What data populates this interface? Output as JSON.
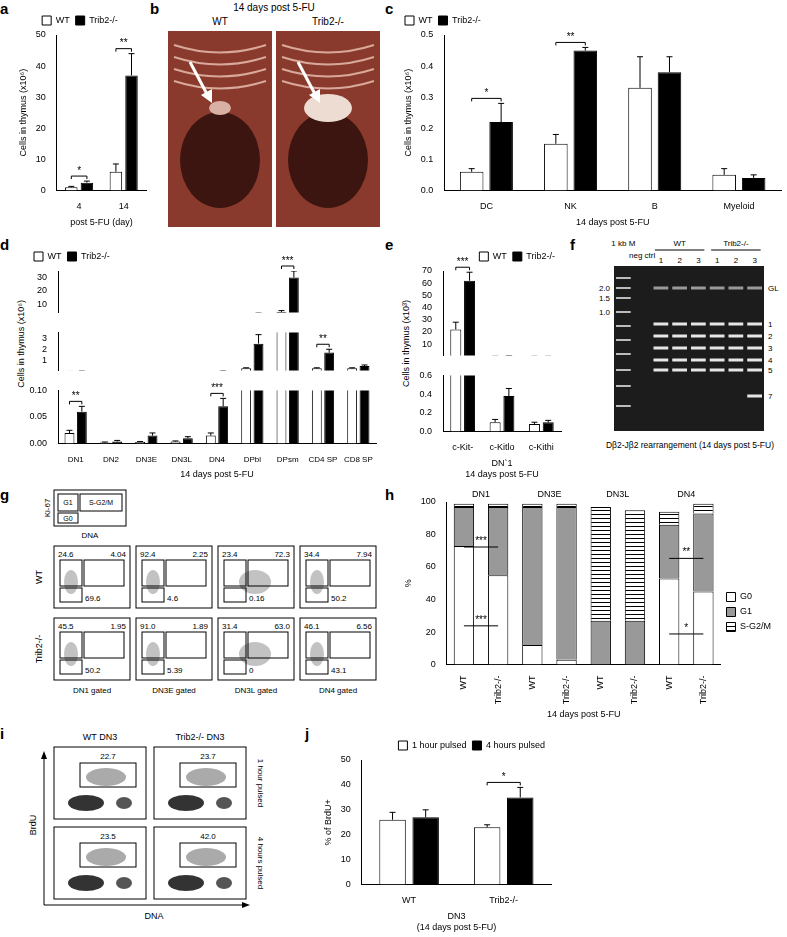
{
  "chart_data": [
    {
      "panel": "a",
      "type": "bar",
      "grid": false,
      "legend": "top",
      "categories": [
        "4",
        "14"
      ],
      "x_label": "post 5-FU (day)",
      "y_label": "Cells in thymus (x10⁶)",
      "ylim": [
        0,
        50
      ],
      "yticks": [
        0,
        10,
        20,
        30,
        40,
        50
      ],
      "series": [
        {
          "name": "WT",
          "color": "#ffffff",
          "values": [
            1.0,
            6.0
          ],
          "errors": [
            0.3,
            2.5
          ]
        },
        {
          "name": "Trib2-/-",
          "color": "#000000",
          "values": [
            2.5,
            37
          ],
          "errors": [
            0.5,
            7
          ]
        }
      ],
      "annotations": [
        {
          "category": "4",
          "text": "*"
        },
        {
          "category": "14",
          "text": "**"
        }
      ]
    },
    {
      "panel": "c",
      "type": "bar",
      "grid": false,
      "legend": "top-left",
      "categories": [
        "DC",
        "NK",
        "B",
        "Myeloid"
      ],
      "x_label": "14 days post 5-FU",
      "y_label": "Cells in thymus (x10⁶)",
      "ylim": [
        0,
        0.5
      ],
      "yticks": [
        {
          "value": 0,
          "label": "0.0"
        },
        0.1,
        0.2,
        0.3,
        0.4,
        0.5
      ],
      "series": [
        {
          "name": "WT",
          "color": "#ffffff",
          "values": [
            0.06,
            0.15,
            0.33,
            0.05
          ],
          "errors": [
            0.01,
            0.03,
            0.1,
            0.02
          ]
        },
        {
          "name": "Trib2-/-",
          "color": "#000000",
          "values": [
            0.22,
            0.45,
            0.38,
            0.04
          ],
          "errors": [
            0.06,
            0.01,
            0.05,
            0.01
          ]
        }
      ],
      "annotations": [
        {
          "category": "DC",
          "text": "*"
        },
        {
          "category": "NK",
          "text": "**"
        }
      ]
    },
    {
      "panel": "d",
      "type": "bar",
      "grid": false,
      "legend": "top-left",
      "categories": [
        "DN1",
        "DN2",
        "DN3E",
        "DN3L",
        "DN4",
        "DPbl",
        "DPsm",
        "CD4 SP",
        "CD8 SP"
      ],
      "x_label": "14 days post 5-FU",
      "y_label": "Cells in thymus (x10⁶)",
      "ylim": [
        [
          0,
          0.1
        ],
        [
          0.1,
          3.5
        ],
        [
          3.5,
          35
        ]
      ],
      "yticks": [
        [
          {
            "value": 0,
            "label": "0.00"
          },
          0.05,
          {
            "value": 0.1,
            "label": "0.10"
          }
        ],
        [
          1,
          2,
          3
        ],
        [
          10,
          20,
          30
        ]
      ],
      "series": [
        {
          "name": "WT",
          "color": "#ffffff",
          "values": [
            0.02,
            0.002,
            0.003,
            0.004,
            0.015,
            0.3,
            4,
            0.3,
            0.3
          ],
          "errors": [
            0.005,
            0.001,
            0.001,
            0.001,
            0.005,
            0.05,
            1,
            0.05,
            0.05
          ]
        },
        {
          "name": "Trib2-/-",
          "color": "#000000",
          "values": [
            0.06,
            0.004,
            0.015,
            0.01,
            0.07,
            2.5,
            30,
            1.7,
            0.5
          ],
          "errors": [
            0.01,
            0.002,
            0.005,
            0.003,
            0.015,
            0.8,
            5,
            0.3,
            0.1
          ]
        }
      ],
      "annotations": [
        {
          "category": "DN1",
          "text": "**"
        },
        {
          "category": "DN4",
          "text": "***"
        },
        {
          "category": "DPsm",
          "text": "***"
        },
        {
          "category": "CD4 SP",
          "text": "**"
        }
      ]
    },
    {
      "panel": "e",
      "type": "bar",
      "grid": false,
      "legend": "top-right",
      "categories": [
        "c-Kit-",
        "c-Kitlo",
        "c-Kithi"
      ],
      "x_label": [
        "DN`1",
        "14 days post 5-FU"
      ],
      "y_label": "Cells in thymus (x10³)",
      "ylim": [
        [
          0,
          0.6
        ],
        [
          0.6,
          70
        ]
      ],
      "yticks": [
        [
          {
            "value": 0,
            "label": "0.0"
          },
          0.2,
          0.4,
          0.6
        ],
        [
          10,
          20,
          30,
          40,
          50,
          60,
          70
        ]
      ],
      "series": [
        {
          "name": "WT",
          "color": "#ffffff",
          "values": [
            22,
            0.1,
            0.08
          ],
          "errors": [
            6,
            0.03,
            0.02
          ]
        },
        {
          "name": "Trib2-/-",
          "color": "#000000",
          "values": [
            62,
            0.38,
            0.1
          ],
          "errors": [
            7,
            0.08,
            0.02
          ]
        }
      ],
      "annotations": [
        {
          "category": "c-Kit-",
          "text": "***"
        }
      ]
    },
    {
      "panel": "h",
      "type": "bar",
      "grid": false,
      "legend": "right",
      "stacked": true,
      "categories": [
        "WT",
        "Trib2-/-",
        "WT",
        "Trib2-/-",
        "WT",
        "Trib2-/-",
        "WT",
        "Trib2-/-"
      ],
      "groups": [
        "DN1",
        "DN3E",
        "DN3L",
        "DN4"
      ],
      "x_label": "14 days post 5-FU",
      "y_label": "%",
      "ylim": [
        0,
        100
      ],
      "yticks": [
        0,
        20,
        40,
        60,
        80,
        100
      ],
      "series": [
        {
          "name": "G0",
          "color": "#ffffff",
          "values": [
            73,
            55,
            12,
            3,
            0,
            0,
            53,
            45
          ]
        },
        {
          "name": "G1",
          "color": "#999999",
          "values": [
            24,
            42,
            85,
            94,
            27,
            27,
            33,
            48
          ]
        },
        {
          "name": "S-G2/M",
          "color": "#ffffff",
          "line_style": "hatched",
          "values": [
            2,
            2,
            2,
            2,
            70,
            68,
            8,
            6
          ]
        }
      ],
      "annotations": [
        {
          "group": "DN1",
          "series": "G1",
          "text": "***"
        },
        {
          "group": "DN1",
          "series": "G0",
          "text": "***"
        },
        {
          "group": "DN4",
          "series": "G1",
          "text": "**"
        },
        {
          "group": "DN4",
          "series": "G0",
          "text": "*"
        }
      ]
    },
    {
      "panel": "j",
      "type": "bar",
      "grid": false,
      "legend": "top-right",
      "categories": [
        "WT",
        "Trib2-/-"
      ],
      "x_label": [
        "DN3",
        "(14 days post 5-FU)"
      ],
      "y_label": "% of BrdU+",
      "ylim": [
        0,
        50
      ],
      "yticks": [
        0,
        10,
        20,
        30,
        40,
        50
      ],
      "series": [
        {
          "name": "1 hour pulsed",
          "color": "#ffffff",
          "values": [
            26,
            23
          ],
          "errors": [
            3,
            1
          ]
        },
        {
          "name": "4 hours pulsed",
          "color": "#000000",
          "values": [
            27,
            35
          ],
          "errors": [
            3,
            4
          ]
        }
      ],
      "annotations": [
        {
          "category": "Trib2-/-",
          "text": "*"
        }
      ]
    }
  ],
  "photo_b": {
    "panel": "b",
    "title": "14 days post 5-FU",
    "labels": [
      "WT",
      "Trib2-/-"
    ]
  },
  "gel_f": {
    "panel": "f",
    "caption": "Dβ2-Jβ2 rearrangement (14 days post 5-FU)",
    "lanes": [
      "1 kb M",
      "neg ctrl",
      "1",
      "2",
      "3",
      "1",
      "2",
      "3"
    ],
    "groups": [
      "WT",
      "Trib2-/-"
    ],
    "ladder": [
      "2.0",
      "1.5",
      "1.0"
    ],
    "bands": [
      "GL",
      "1",
      "2",
      "3",
      "4",
      "5",
      "7"
    ]
  },
  "flow_g": {
    "panel": "g",
    "key": {
      "y_axis": "Ki-67",
      "x_axis": "DNA",
      "gates": [
        "G1",
        "S-G2/M",
        "G0"
      ]
    },
    "columns": [
      "DN1 gated",
      "DN3E gated",
      "DN3L gated",
      "DN4 gated"
    ],
    "rows": [
      {
        "name": "WT",
        "plots": [
          [
            "24.6",
            "4.04",
            "69.6"
          ],
          [
            "92.4",
            "2.25",
            "4.6"
          ],
          [
            "23.4",
            "72.3",
            "0.16"
          ],
          [
            "34.4",
            "7.94",
            "50.2"
          ]
        ]
      },
      {
        "name": "Trib2-/-",
        "plots": [
          [
            "45.5",
            "1.95",
            "50.2"
          ],
          [
            "91.0",
            "1.89",
            "5.39"
          ],
          [
            "31.4",
            "63.0",
            "0"
          ],
          [
            "46.1",
            "6.56",
            "43.1"
          ]
        ]
      }
    ]
  },
  "flow_i": {
    "panel": "i",
    "columns": [
      "WT DN3",
      "Trib2-/- DN3"
    ],
    "rows": [
      "1 hour pulsed",
      "4 hours pulsed"
    ],
    "gates": [
      [
        "22.7",
        "23.7"
      ],
      [
        "23.5",
        "42.0"
      ]
    ],
    "y_axis": "BrdU",
    "x_axis": "DNA"
  }
}
